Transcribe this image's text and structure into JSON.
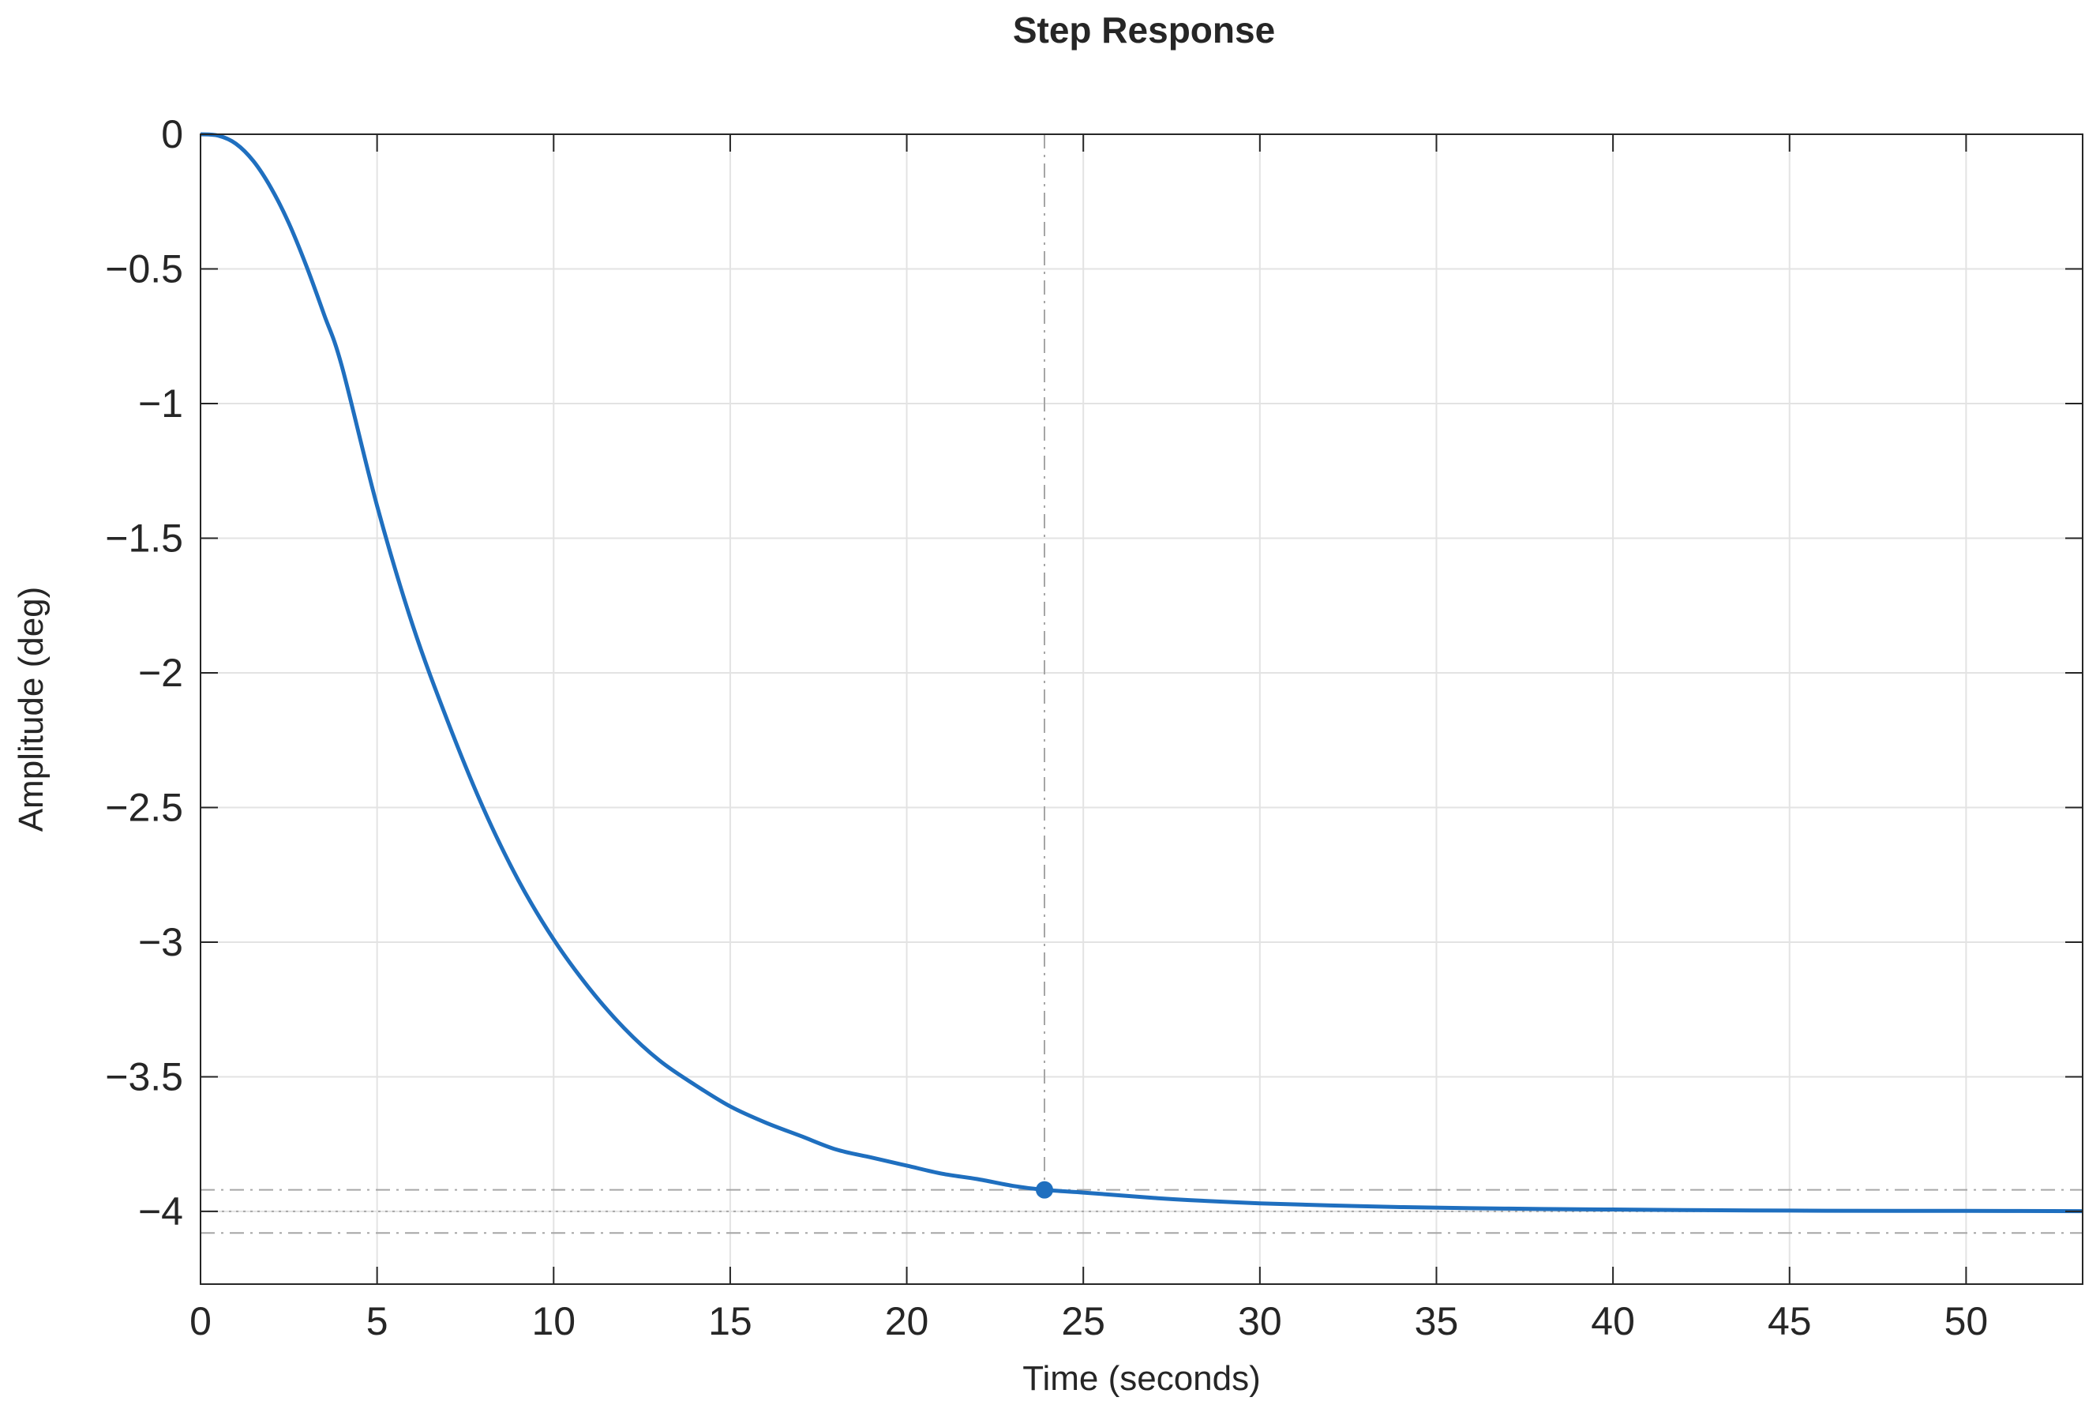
{
  "chart_data": {
    "type": "line",
    "title": "Step Response",
    "xlabel": "Time (seconds)",
    "ylabel": "Amplitude (deg)",
    "xlim": [
      0,
      53.3
    ],
    "ylim": [
      -4.27,
      0
    ],
    "grid": true,
    "x_ticks": [
      0,
      5,
      10,
      15,
      20,
      25,
      30,
      35,
      40,
      45,
      50
    ],
    "y_ticks": [
      0,
      -0.5,
      -1,
      -1.5,
      -2,
      -2.5,
      -3,
      -3.5,
      -4
    ],
    "x_tick_labels": [
      "0",
      "5",
      "10",
      "15",
      "20",
      "25",
      "30",
      "35",
      "40",
      "45",
      "50"
    ],
    "y_tick_labels": [
      "0",
      "−0.5",
      "−1",
      "−1.5",
      "−2",
      "−2.5",
      "−3",
      "−3.5",
      "−4"
    ],
    "series": [
      {
        "color": "#1f6fbf",
        "x": [
          0,
          0.5,
          1,
          1.5,
          2,
          2.5,
          3,
          3.5,
          4,
          5,
          6,
          7,
          8,
          9,
          10,
          11,
          12,
          13,
          14,
          15,
          16,
          17,
          18,
          19,
          20,
          21,
          22,
          23,
          23.9,
          25,
          26,
          27,
          28,
          30,
          32,
          34,
          36,
          38,
          40,
          42,
          45,
          48,
          50,
          53.3
        ],
        "y": [
          0,
          -0.005,
          -0.035,
          -0.1,
          -0.2,
          -0.33,
          -0.49,
          -0.67,
          -0.86,
          -1.38,
          -1.82,
          -2.18,
          -2.5,
          -2.77,
          -2.99,
          -3.17,
          -3.32,
          -3.44,
          -3.53,
          -3.61,
          -3.67,
          -3.72,
          -3.77,
          -3.8,
          -3.83,
          -3.86,
          -3.88,
          -3.905,
          -3.92,
          -3.93,
          -3.94,
          -3.95,
          -3.958,
          -3.97,
          -3.978,
          -3.984,
          -3.988,
          -3.991,
          -3.993,
          -3.995,
          -3.997,
          -3.998,
          -3.998,
          -3.999
        ]
      }
    ],
    "final_value": -4,
    "settling_band": [
      -3.92,
      -4.08
    ],
    "settling_time": 23.9,
    "settling_marker_value": -3.92
  }
}
